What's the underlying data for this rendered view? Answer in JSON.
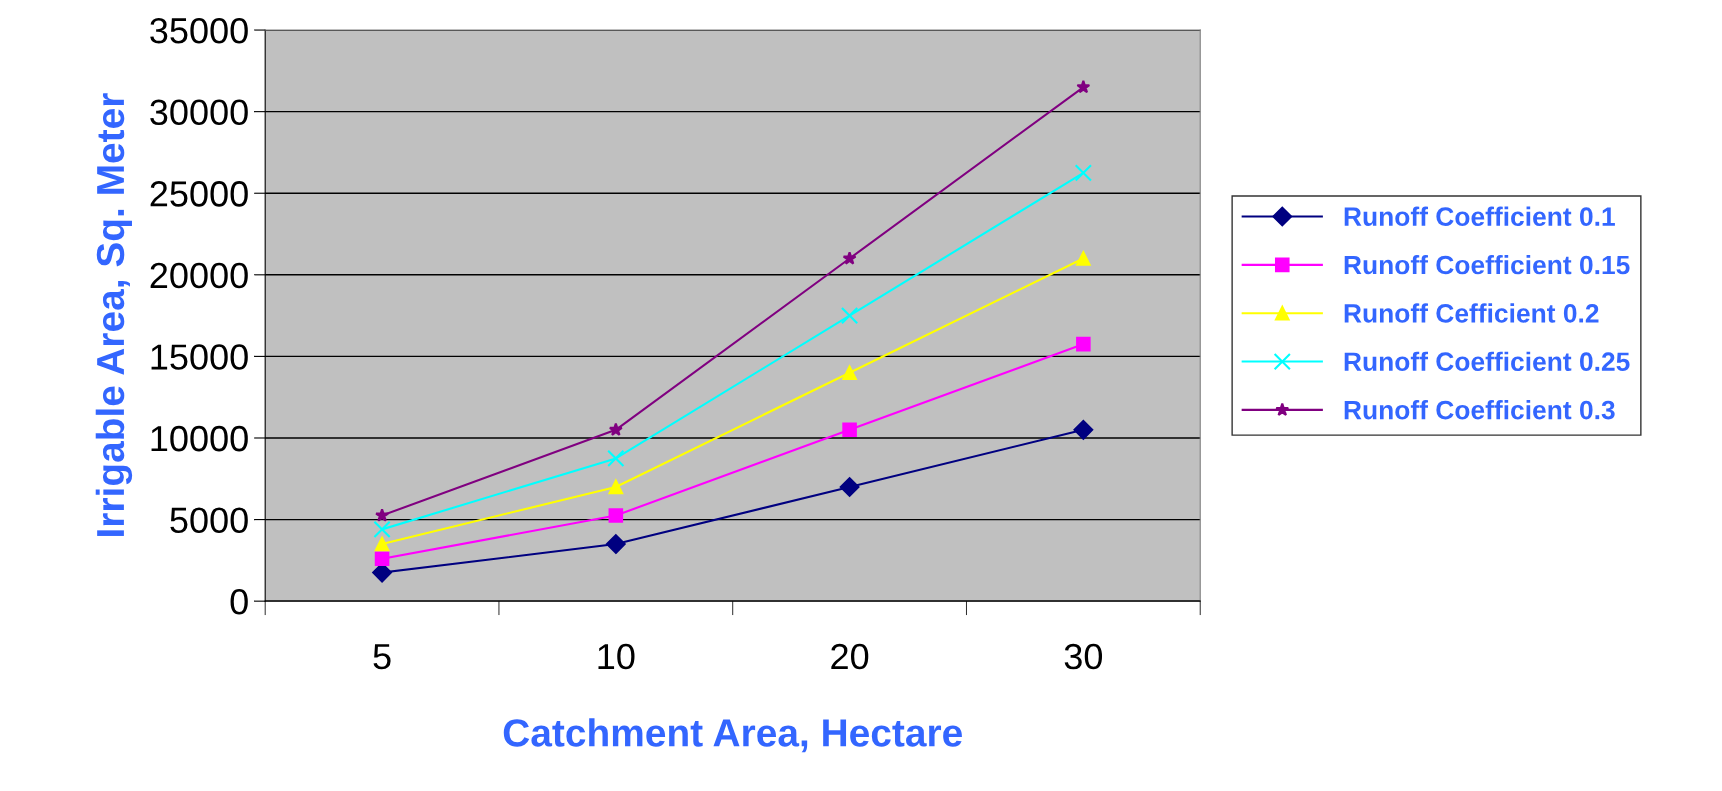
{
  "chart_data": {
    "type": "line",
    "xlabel": "Catchment Area, Hectare",
    "ylabel": "Irrigable Area, Sq. Meter",
    "categories": [
      "5",
      "10",
      "20",
      "30"
    ],
    "series": [
      {
        "name": "Runoff Coefficient 0.1",
        "color": "#000080",
        "marker": "diamond",
        "values": [
          1750,
          3500,
          7000,
          10500
        ]
      },
      {
        "name": "Runoff Coefficient 0.15",
        "color": "#ff00ff",
        "marker": "square",
        "values": [
          2600,
          5250,
          10500,
          15750
        ]
      },
      {
        "name": "Runoff Cefficient 0.2",
        "color": "#ffff00",
        "marker": "triangle",
        "values": [
          3500,
          7000,
          14000,
          21000
        ]
      },
      {
        "name": "Runoff Coefficient 0.25",
        "color": "#00ffff",
        "marker": "cross",
        "values": [
          4400,
          8750,
          17500,
          26250
        ]
      },
      {
        "name": "Runoff Coefficient 0.3",
        "color": "#800080",
        "marker": "star",
        "values": [
          5250,
          10500,
          21000,
          31500
        ]
      }
    ],
    "ylim": [
      0,
      35000
    ],
    "yticks": [
      0,
      5000,
      10000,
      15000,
      20000,
      25000,
      30000,
      35000
    ],
    "grid": "y",
    "legend": "right",
    "line_style": "solid"
  }
}
